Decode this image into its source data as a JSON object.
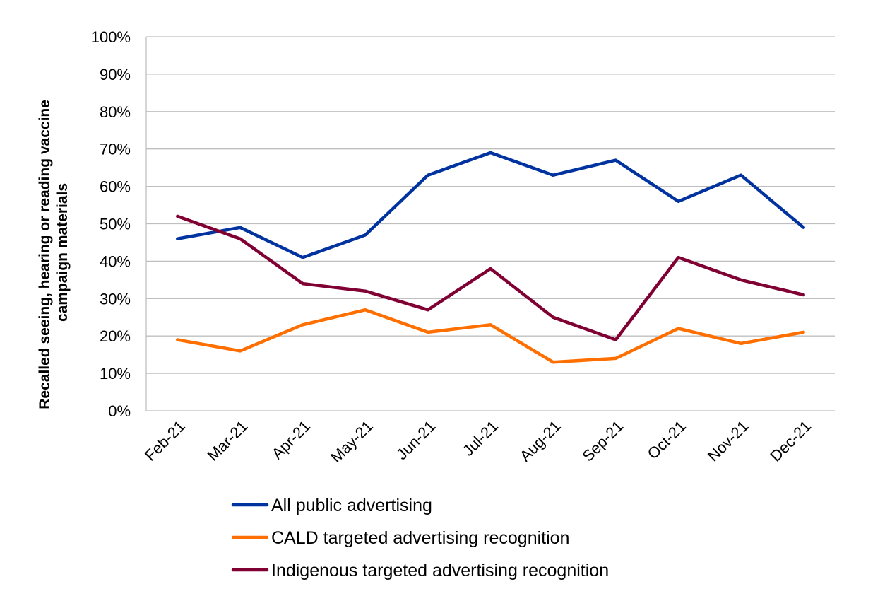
{
  "chart_data": {
    "type": "line",
    "title": "",
    "xlabel": "",
    "ylabel_lines": [
      "Recalled seeing, hearing or reading vaccine",
      "campaign materials"
    ],
    "categories": [
      "Feb-21",
      "Mar-21",
      "Apr-21",
      "May-21",
      "Jun-21",
      "Jul-21",
      "Aug-21",
      "Sep-21",
      "Oct-21",
      "Nov-21",
      "Dec-21"
    ],
    "yticks": [
      "0%",
      "10%",
      "20%",
      "30%",
      "40%",
      "50%",
      "60%",
      "70%",
      "80%",
      "90%",
      "100%"
    ],
    "ylim": [
      0,
      100
    ],
    "grid": true,
    "legend_position": "bottom",
    "series": [
      {
        "name": "All public advertising",
        "color": "#0033a0",
        "values": [
          46,
          49,
          41,
          47,
          63,
          69,
          63,
          67,
          56,
          63,
          49
        ]
      },
      {
        "name": "CALD targeted advertising recognition",
        "color": "#ff6f00",
        "values": [
          19,
          16,
          23,
          27,
          21,
          23,
          13,
          14,
          22,
          18,
          21
        ]
      },
      {
        "name": "Indigenous targeted advertising recognition",
        "color": "#800033",
        "values": [
          52,
          46,
          34,
          32,
          27,
          38,
          25,
          19,
          41,
          35,
          31
        ]
      }
    ]
  }
}
